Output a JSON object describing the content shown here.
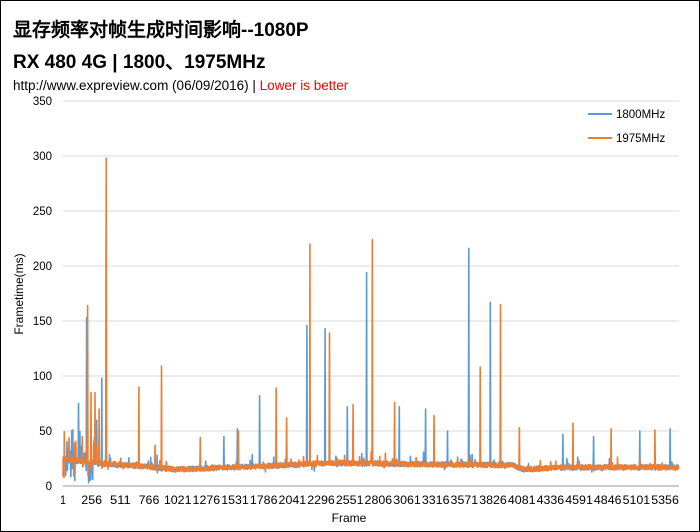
{
  "title": "显存频率对帧生成时间影响--1080P",
  "subtitle": "RX 480 4G | 1800、1975MHz",
  "source": "http://www.expreview.com (06/09/2016)",
  "separator": "|",
  "note": "Lower is better",
  "chart_data": {
    "type": "line",
    "xlabel": "Frame",
    "ylabel": "Frametime(ms)",
    "ylim": [
      0,
      350
    ],
    "xlim": [
      1,
      5480
    ],
    "grid": true,
    "legend_placement": "top-right",
    "yticks": [
      "0",
      "50",
      "100",
      "150",
      "200",
      "250",
      "300",
      "350"
    ],
    "xticks": [
      "1",
      "256",
      "511",
      "766",
      "1021",
      "1276",
      "1531",
      "1786",
      "2041",
      "2296",
      "2551",
      "2806",
      "3061",
      "3316",
      "3571",
      "3826",
      "4081",
      "4336",
      "4591",
      "4846",
      "5101",
      "5356"
    ],
    "series": [
      {
        "name": "1800MHz",
        "color": "#5b9bd5",
        "baseline": [
          [
            1,
            24
          ],
          [
            300,
            20
          ],
          [
            700,
            18
          ],
          [
            1000,
            15
          ],
          [
            1500,
            17
          ],
          [
            2000,
            19
          ],
          [
            2400,
            21
          ],
          [
            3000,
            20
          ],
          [
            4000,
            19
          ],
          [
            4100,
            15
          ],
          [
            4500,
            17
          ],
          [
            5480,
            17
          ]
        ],
        "spikes": [
          [
            137,
            75
          ],
          [
            210,
            153
          ],
          [
            300,
            60
          ],
          [
            345,
            98
          ],
          [
            383,
            225
          ],
          [
            1430,
            45
          ],
          [
            1550,
            52
          ],
          [
            1750,
            82
          ],
          [
            2170,
            146
          ],
          [
            2330,
            143
          ],
          [
            2530,
            72
          ],
          [
            2700,
            194
          ],
          [
            2990,
            72
          ],
          [
            3225,
            70
          ],
          [
            3420,
            50
          ],
          [
            3610,
            216
          ],
          [
            3800,
            167
          ],
          [
            4445,
            47
          ],
          [
            4720,
            45
          ],
          [
            5130,
            50
          ],
          [
            5400,
            52
          ]
        ]
      },
      {
        "name": "1975MHz",
        "color": "#ed7d31",
        "baseline": [
          [
            1,
            25
          ],
          [
            300,
            21
          ],
          [
            700,
            18
          ],
          [
            1000,
            15
          ],
          [
            1500,
            17
          ],
          [
            2000,
            19
          ],
          [
            2400,
            21
          ],
          [
            3000,
            20
          ],
          [
            4000,
            19
          ],
          [
            4100,
            15
          ],
          [
            4500,
            17
          ],
          [
            5480,
            17
          ]
        ],
        "spikes": [
          [
            170,
            45
          ],
          [
            220,
            164
          ],
          [
            250,
            85
          ],
          [
            285,
            85
          ],
          [
            320,
            70
          ],
          [
            385,
            298
          ],
          [
            675,
            90
          ],
          [
            820,
            37
          ],
          [
            875,
            109
          ],
          [
            1220,
            44
          ],
          [
            1560,
            50
          ],
          [
            1895,
            89
          ],
          [
            1990,
            62
          ],
          [
            2195,
            220
          ],
          [
            2370,
            139
          ],
          [
            2580,
            74
          ],
          [
            2750,
            224
          ],
          [
            2950,
            76
          ],
          [
            3300,
            64
          ],
          [
            3710,
            108
          ],
          [
            3890,
            165
          ],
          [
            4060,
            53
          ],
          [
            4535,
            57
          ],
          [
            4875,
            52
          ],
          [
            5265,
            51
          ],
          [
            5540,
            54
          ]
        ]
      }
    ]
  }
}
